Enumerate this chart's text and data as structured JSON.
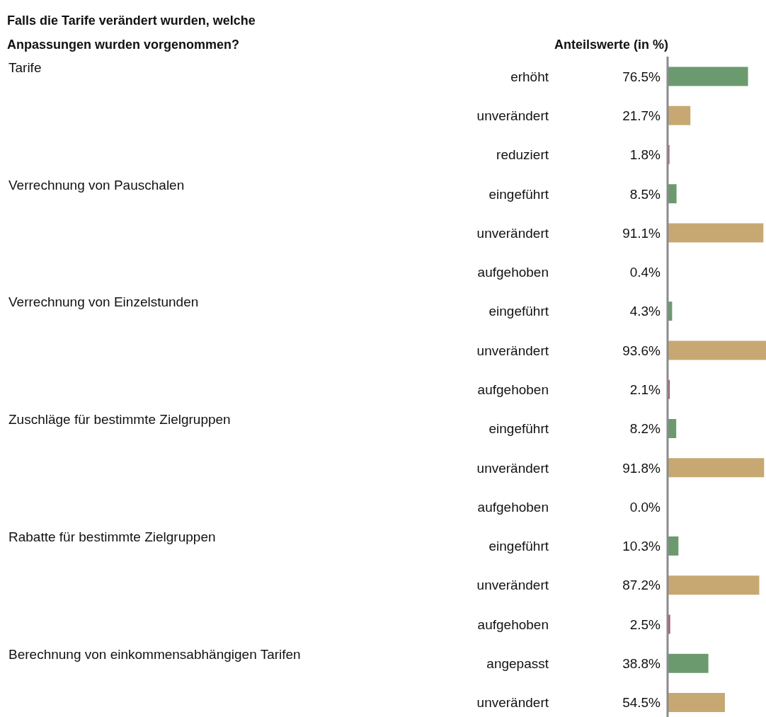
{
  "chart_data": {
    "type": "bar",
    "orientation": "horizontal",
    "title": "Falls die Tarife verändert wurden, welche Anpassungen wurden vorgenommen?",
    "xlabel": "Anteilswerte (in %)",
    "categories": [
      "erhöht",
      "unverändert",
      "reduziert",
      "eingeführt",
      "unverändert",
      "aufgehoben",
      "eingeführt",
      "unverändert",
      "aufgehoben",
      "eingeführt",
      "unverändert",
      "aufgehoben",
      "eingeführt",
      "unverändert",
      "aufgehoben",
      "angepasst",
      "unverändert"
    ],
    "values": [
      76.5,
      21.7,
      1.8,
      8.5,
      91.1,
      0.4,
      4.3,
      93.6,
      2.1,
      8.2,
      91.8,
      0.0,
      10.3,
      87.2,
      2.5,
      38.8,
      54.5
    ],
    "value_labels": [
      "76.5%",
      "21.7%",
      "1.8%",
      "8.5%",
      "91.1%",
      "0.4%",
      "4.3%",
      "93.6%",
      "2.1%",
      "8.2%",
      "91.8%",
      "0.0%",
      "10.3%",
      "87.2%",
      "2.5%",
      "38.8%",
      "54.5%"
    ],
    "colors": [
      "#6b9a6e",
      "#c8a872",
      "#b5587a",
      "#6b9a6e",
      "#c8a872",
      "#b5587a",
      "#6b9a6e",
      "#c8a872",
      "#b5587a",
      "#6b9a6e",
      "#c8a872",
      "#b5587a",
      "#6b9a6e",
      "#c8a872",
      "#b5587a",
      "#6b9a6e",
      "#c8a872"
    ],
    "annotations": [
      "Tarife",
      "Verrechnung von Pauschalen",
      "Verrechnung von Einzelstunden",
      "Zuschläge für bestimmte Zielgruppen",
      "Rabatte für bestimmte Zielgruppen",
      "Berechnung von einkommensabhängigen Tarifen"
    ]
  }
}
